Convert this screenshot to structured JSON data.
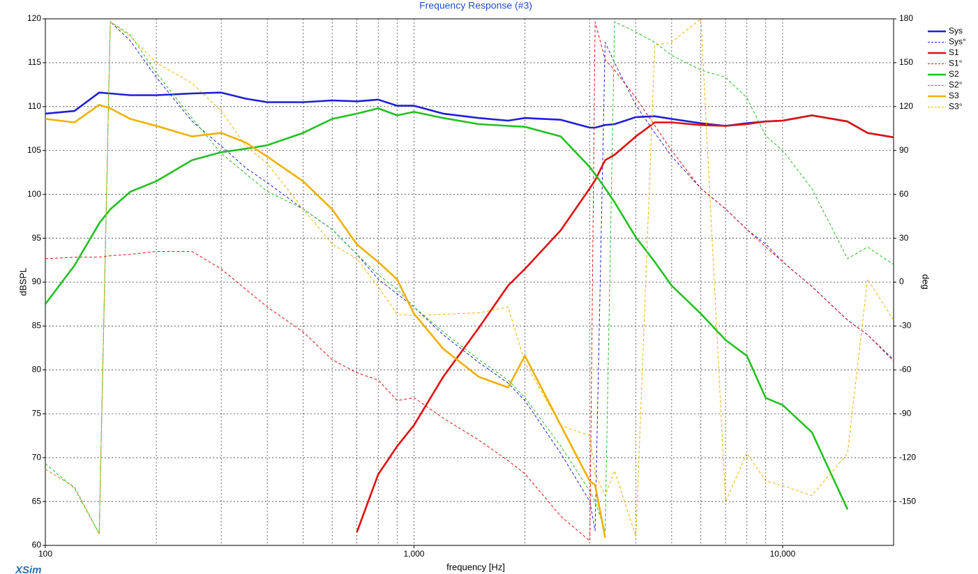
{
  "chart_data": {
    "type": "line",
    "title": "Frequency Response (#3)",
    "x_label": "frequency [Hz]",
    "y_label": "dBSPL",
    "y2_label": "deg",
    "watermark": "XSim",
    "log_x": true,
    "grid": true,
    "legend": "right",
    "xlim": [
      100,
      20000
    ],
    "xticks": [
      100,
      {
        "value": 1000,
        "label": "1,000"
      },
      {
        "value": 10000,
        "label": "10,000"
      }
    ],
    "xminorticks": [
      200,
      300,
      400,
      500,
      600,
      700,
      800,
      900,
      2000,
      3000,
      4000,
      5000,
      6000,
      7000,
      8000,
      9000
    ],
    "ylim": [
      60,
      120
    ],
    "yticks": [
      60,
      65,
      70,
      75,
      80,
      85,
      90,
      95,
      100,
      105,
      110,
      115,
      120
    ],
    "y2lim": [
      -180,
      180
    ],
    "y2ticks": [
      180,
      150,
      120,
      90,
      60,
      30,
      0,
      -30,
      -60,
      -90,
      -120,
      -150
    ],
    "x": [
      100,
      120,
      140,
      150,
      170,
      200,
      250,
      300,
      350,
      400,
      500,
      600,
      700,
      800,
      900,
      1000,
      1200,
      1500,
      1800,
      2000,
      2500,
      3000,
      3100,
      3300,
      3500,
      4000,
      4500,
      5000,
      6000,
      7000,
      8000,
      9000,
      10000,
      12000,
      15000,
      17000,
      20000
    ],
    "series": [
      {
        "name": "Sys",
        "color": "#1f1fd6",
        "linestyle": "solid",
        "values": [
          109.2,
          109.5,
          111.6,
          111.5,
          111.3,
          111.3,
          111.5,
          111.6,
          110.9,
          110.5,
          110.5,
          110.7,
          110.6,
          110.8,
          110.1,
          110.1,
          109.2,
          108.7,
          108.4,
          108.7,
          108.5,
          107.6,
          107.6,
          107.9,
          108.0,
          108.8,
          108.9,
          108.6,
          108.1,
          107.8,
          108.1,
          108.3,
          108.4,
          109.0,
          108.3,
          107.0,
          106.5
        ]
      },
      {
        "name": "Sys°",
        "color": "#1f1fd6",
        "linestyle": "dashed",
        "axis": "y2",
        "values": [
          -128,
          -140,
          -172,
          178,
          165,
          140,
          110,
          93,
          78,
          68,
          50,
          36,
          19,
          2,
          -8,
          -17,
          -36,
          -55,
          -69,
          -81,
          -117,
          -150,
          -170,
          164,
          150,
          121,
          102,
          86,
          64,
          50,
          36,
          26,
          14,
          -3,
          -26,
          -36,
          -53
        ]
      },
      {
        "name": "S1",
        "color": "#e01010",
        "linestyle": "solid",
        "values": [
          null,
          null,
          null,
          null,
          null,
          null,
          null,
          null,
          null,
          null,
          null,
          null,
          61.5,
          68.1,
          71.3,
          73.7,
          79.2,
          84.8,
          89.6,
          91.5,
          95.9,
          100.7,
          101.6,
          103.9,
          104.5,
          106.6,
          108.2,
          108.2,
          107.9,
          107.8,
          108.0,
          108.3,
          108.4,
          109.0,
          108.3,
          107.0,
          106.5
        ]
      },
      {
        "name": "S1°",
        "color": "#e01010",
        "linestyle": "dashed",
        "axis": "y2",
        "values": [
          16,
          17,
          17,
          18,
          19,
          21,
          21,
          9,
          -5,
          -17,
          -34,
          -53,
          -62,
          -67,
          -81,
          -79,
          -93,
          -108,
          -122,
          -131,
          -160,
          -177,
          178,
          152,
          145,
          126,
          107,
          90,
          64,
          50,
          36,
          24,
          14,
          -3,
          -26,
          -36,
          -54
        ]
      },
      {
        "name": "S2",
        "color": "#22c022",
        "linestyle": "solid",
        "values": [
          87.5,
          91.9,
          96.7,
          98.3,
          100.3,
          101.5,
          103.9,
          104.8,
          105.2,
          105.6,
          107.0,
          108.6,
          109.2,
          109.8,
          109.0,
          109.4,
          108.7,
          108.0,
          107.8,
          107.7,
          106.6,
          103.1,
          102.3,
          100.7,
          99.1,
          95.1,
          92.3,
          89.6,
          86.4,
          83.4,
          81.6,
          76.8,
          76.0,
          72.9,
          64.1,
          null,
          null
        ]
      },
      {
        "name": "S2°",
        "color": "#22c022",
        "linestyle": "dashed",
        "axis": "y2",
        "values": [
          -124,
          -141,
          -172,
          178,
          169,
          143,
          112,
          88,
          74,
          62,
          50,
          36,
          19,
          5,
          -5,
          -17,
          -34,
          -53,
          -67,
          -79,
          -112,
          -143,
          -150,
          -170,
          178,
          171,
          164,
          155,
          145,
          140,
          126,
          100,
          90,
          64,
          16,
          24,
          12
        ]
      },
      {
        "name": "S3",
        "color": "#f0b000",
        "linestyle": "solid",
        "values": [
          108.6,
          108.2,
          110.2,
          109.8,
          108.6,
          107.8,
          106.6,
          107.0,
          105.9,
          104.3,
          101.5,
          98.3,
          94.3,
          92.3,
          90.3,
          86.4,
          82.4,
          79.2,
          78.0,
          81.6,
          73.7,
          67.3,
          66.9,
          60.9,
          null,
          null,
          null,
          null,
          null,
          null,
          null,
          null,
          null,
          null,
          null,
          null,
          null
        ]
      },
      {
        "name": "S3°",
        "color": "#f0b000",
        "linestyle": "dashed",
        "axis": "y2",
        "values": [
          -128,
          -140,
          -172,
          178,
          168,
          150,
          136,
          117,
          93,
          81,
          50,
          26,
          16,
          -3,
          -22,
          -23,
          -22,
          -21,
          -17,
          -55,
          -98,
          -105,
          -131,
          -146,
          -129,
          -174,
          162,
          164,
          180,
          -150,
          -117,
          -136,
          -139,
          -146,
          -117,
          2,
          -26
        ]
      }
    ]
  }
}
